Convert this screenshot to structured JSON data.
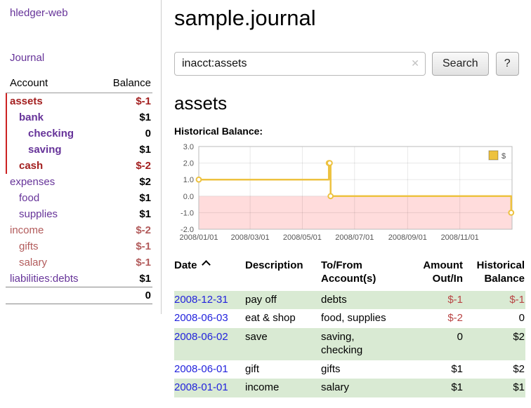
{
  "sidebar": {
    "app_title": "hledger-web",
    "journal_label": "Journal",
    "accounts_header": {
      "account": "Account",
      "balance": "Balance"
    },
    "accounts": [
      {
        "name": "assets",
        "indent": 0,
        "balance": "$-1",
        "bold": true,
        "negative": true,
        "selected": true
      },
      {
        "name": "bank",
        "indent": 1,
        "balance": "$1",
        "bold": true,
        "negative": false,
        "selected": true
      },
      {
        "name": "checking",
        "indent": 2,
        "balance": "0",
        "bold": true,
        "negative": false,
        "selected": true
      },
      {
        "name": "saving",
        "indent": 2,
        "balance": "$1",
        "bold": true,
        "negative": false,
        "selected": true
      },
      {
        "name": "cash",
        "indent": 1,
        "balance": "$-2",
        "bold": true,
        "negative": true,
        "selected": true
      },
      {
        "name": "expenses",
        "indent": 0,
        "balance": "$2",
        "bold": false,
        "negative": false,
        "selected": false
      },
      {
        "name": "food",
        "indent": 1,
        "balance": "$1",
        "bold": false,
        "negative": false,
        "selected": false
      },
      {
        "name": "supplies",
        "indent": 1,
        "balance": "$1",
        "bold": false,
        "negative": false,
        "selected": false
      },
      {
        "name": "income",
        "indent": 0,
        "balance": "$-2",
        "bold": false,
        "negative": true,
        "selected": false
      },
      {
        "name": "gifts",
        "indent": 1,
        "balance": "$-1",
        "bold": false,
        "negative": true,
        "selected": false
      },
      {
        "name": "salary",
        "indent": 1,
        "balance": "$-1",
        "bold": false,
        "negative": true,
        "selected": false
      },
      {
        "name": "liabilities:debts",
        "indent": 0,
        "balance": "$1",
        "bold": false,
        "negative": false,
        "selected": false
      }
    ],
    "total": "0"
  },
  "main": {
    "title": "sample.journal",
    "search": {
      "value": "inacct:assets",
      "clear_icon": "✕",
      "button_label": "Search",
      "help_label": "?"
    },
    "account_heading": "assets",
    "chart_title": "Historical Balance:"
  },
  "chart_data": {
    "type": "line",
    "step": true,
    "title": "Historical Balance:",
    "xlabel": "",
    "ylabel": "",
    "grid": true,
    "legend_position": "top-right",
    "legend": [
      {
        "label": "$",
        "color": "#edc240"
      }
    ],
    "x_range": [
      "2008-01-01",
      "2009-01-01"
    ],
    "y_range": [
      -2,
      3
    ],
    "x_ticks": [
      {
        "label": "2008/01/01",
        "date": "2008-01-01"
      },
      {
        "label": "2008/03/01",
        "date": "2008-03-01"
      },
      {
        "label": "2008/05/01",
        "date": "2008-05-01"
      },
      {
        "label": "2008/07/01",
        "date": "2008-07-01"
      },
      {
        "label": "2008/09/01",
        "date": "2008-09-01"
      },
      {
        "label": "2008/11/01",
        "date": "2008-11-01"
      }
    ],
    "y_ticks": [
      {
        "label": "3.0",
        "value": 3
      },
      {
        "label": "2.0",
        "value": 2
      },
      {
        "label": "1.0",
        "value": 1
      },
      {
        "label": "0.0",
        "value": 0
      },
      {
        "label": "-1.0",
        "value": -1
      },
      {
        "label": "-2.0",
        "value": -2
      }
    ],
    "series": [
      {
        "name": "$",
        "color": "#edc240",
        "points": [
          [
            "2008-01-01",
            1
          ],
          [
            "2008-06-01",
            2
          ],
          [
            "2008-06-02",
            2
          ],
          [
            "2008-06-03",
            0
          ],
          [
            "2008-12-31",
            -1
          ]
        ]
      }
    ],
    "negative_region_color": "#ffdcdc"
  },
  "register": {
    "headers": {
      "date": "Date",
      "description": "Description",
      "account": "To/From Account(s)",
      "amount": "Amount Out/In",
      "balance": "Historical Balance"
    },
    "rows": [
      {
        "date": "2008-12-31",
        "description": "pay off",
        "accounts_lines": [
          "debts"
        ],
        "amount": "$-1",
        "balance": "$-1",
        "amount_negative": true,
        "balance_negative": true
      },
      {
        "date": "2008-06-03",
        "description": "eat & shop",
        "accounts_lines": [
          "food, supplies"
        ],
        "amount": "$-2",
        "balance": "0",
        "amount_negative": true,
        "balance_negative": false
      },
      {
        "date": "2008-06-02",
        "description": "save",
        "accounts_lines": [
          "saving,",
          "checking"
        ],
        "amount": "0",
        "balance": "$2",
        "amount_negative": false,
        "balance_negative": false
      },
      {
        "date": "2008-06-01",
        "description": "gift",
        "accounts_lines": [
          "gifts"
        ],
        "amount": "$1",
        "balance": "$2",
        "amount_negative": false,
        "balance_negative": false
      },
      {
        "date": "2008-01-01",
        "description": "income",
        "accounts_lines": [
          "salary"
        ],
        "amount": "$1",
        "balance": "$1",
        "amount_negative": false,
        "balance_negative": false
      }
    ]
  }
}
